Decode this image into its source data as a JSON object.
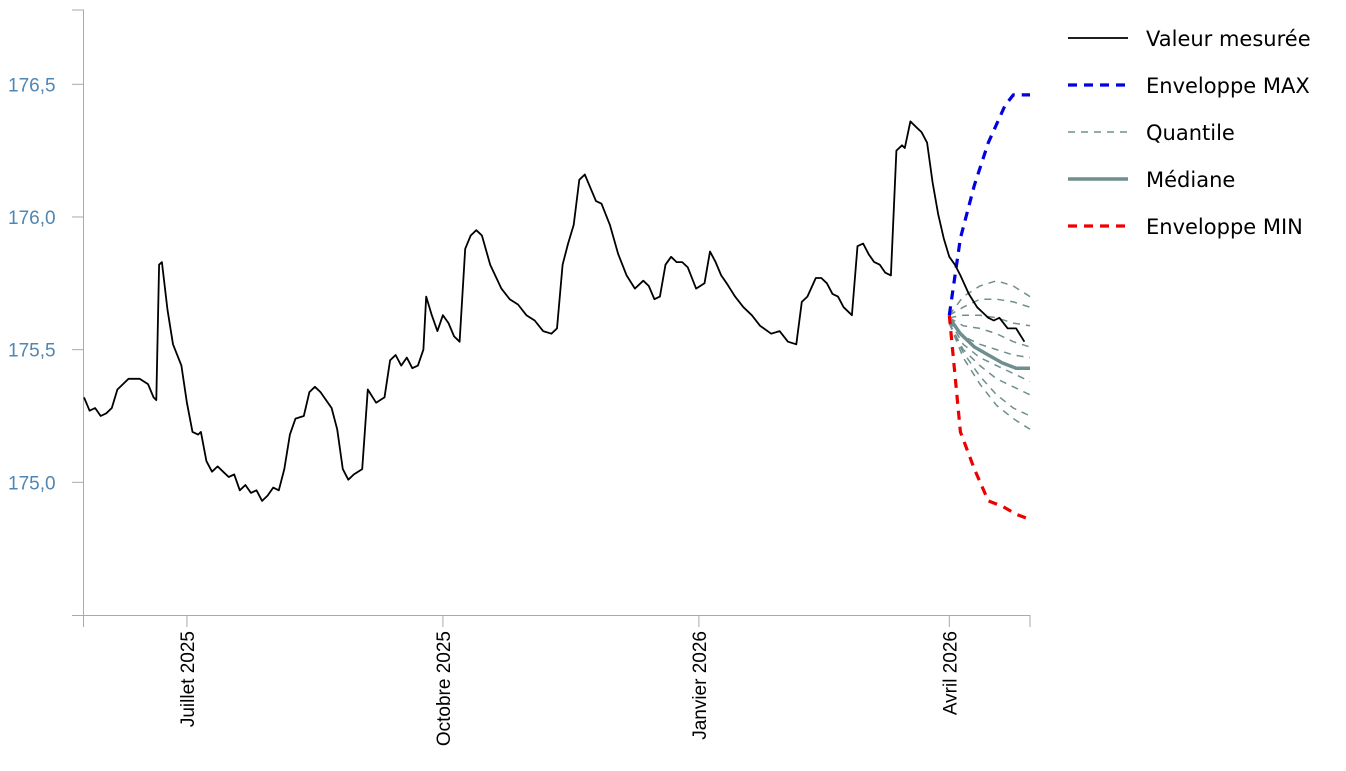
{
  "chart_data": {
    "type": "line",
    "x_axis": {
      "type": "date",
      "range": [
        "2025-05-25",
        "2026-04-30"
      ],
      "ticks": [
        {
          "date": "2025-07-01",
          "label": "Juillet 2025"
        },
        {
          "date": "2025-10-01",
          "label": "Octobre 2025"
        },
        {
          "date": "2026-01-01",
          "label": "Janvier 2026"
        },
        {
          "date": "2026-04-01",
          "label": "Avril 2026"
        }
      ]
    },
    "y_axis": {
      "range": [
        174.5,
        176.78
      ],
      "ticks": [
        {
          "value": 175.0,
          "label": "175,0"
        },
        {
          "value": 175.5,
          "label": "175,5"
        },
        {
          "value": 176.0,
          "label": "176,0"
        },
        {
          "value": 176.5,
          "label": "176,5"
        }
      ]
    },
    "grid": false,
    "legend": {
      "placement": "right-top",
      "entries": [
        {
          "key": "mesure",
          "label": "Valeur mesurée",
          "color": "#000000",
          "style": "solid"
        },
        {
          "key": "max",
          "label": "Enveloppe MAX",
          "color": "#0000e0",
          "style": "dashed"
        },
        {
          "key": "quantile",
          "label": "Quantile",
          "color": "#6f8f8f",
          "style": "dashed-thin"
        },
        {
          "key": "mediane",
          "label": "Médiane",
          "color": "#6f8f8f",
          "style": "solid-thick"
        },
        {
          "key": "min",
          "label": "Enveloppe MIN",
          "color": "#ee0000",
          "style": "dashed"
        }
      ]
    },
    "series": [
      {
        "key": "mesure",
        "name": "Valeur mesurée",
        "color": "#000000",
        "points": [
          [
            "2025-05-25",
            175.32
          ],
          [
            "2025-05-27",
            175.27
          ],
          [
            "2025-05-29",
            175.28
          ],
          [
            "2025-05-31",
            175.25
          ],
          [
            "2025-06-02",
            175.26
          ],
          [
            "2025-06-04",
            175.28
          ],
          [
            "2025-06-06",
            175.35
          ],
          [
            "2025-06-08",
            175.37
          ],
          [
            "2025-06-10",
            175.39
          ],
          [
            "2025-06-14",
            175.39
          ],
          [
            "2025-06-17",
            175.37
          ],
          [
            "2025-06-19",
            175.32
          ],
          [
            "2025-06-20",
            175.31
          ],
          [
            "2025-06-21",
            175.82
          ],
          [
            "2025-06-22",
            175.83
          ],
          [
            "2025-06-24",
            175.65
          ],
          [
            "2025-06-26",
            175.52
          ],
          [
            "2025-06-29",
            175.44
          ],
          [
            "2025-07-01",
            175.3
          ],
          [
            "2025-07-03",
            175.19
          ],
          [
            "2025-07-05",
            175.18
          ],
          [
            "2025-07-06",
            175.19
          ],
          [
            "2025-07-08",
            175.08
          ],
          [
            "2025-07-10",
            175.04
          ],
          [
            "2025-07-12",
            175.06
          ],
          [
            "2025-07-14",
            175.04
          ],
          [
            "2025-07-16",
            175.02
          ],
          [
            "2025-07-18",
            175.03
          ],
          [
            "2025-07-20",
            174.97
          ],
          [
            "2025-07-22",
            174.99
          ],
          [
            "2025-07-24",
            174.96
          ],
          [
            "2025-07-26",
            174.97
          ],
          [
            "2025-07-28",
            174.93
          ],
          [
            "2025-07-30",
            174.95
          ],
          [
            "2025-08-01",
            174.98
          ],
          [
            "2025-08-03",
            174.97
          ],
          [
            "2025-08-05",
            175.05
          ],
          [
            "2025-08-07",
            175.18
          ],
          [
            "2025-08-09",
            175.24
          ],
          [
            "2025-08-12",
            175.25
          ],
          [
            "2025-08-14",
            175.34
          ],
          [
            "2025-08-16",
            175.36
          ],
          [
            "2025-08-18",
            175.34
          ],
          [
            "2025-08-20",
            175.31
          ],
          [
            "2025-08-22",
            175.28
          ],
          [
            "2025-08-24",
            175.2
          ],
          [
            "2025-08-26",
            175.05
          ],
          [
            "2025-08-28",
            175.01
          ],
          [
            "2025-08-30",
            175.03
          ],
          [
            "2025-09-02",
            175.05
          ],
          [
            "2025-09-04",
            175.35
          ],
          [
            "2025-09-07",
            175.3
          ],
          [
            "2025-09-10",
            175.32
          ],
          [
            "2025-09-12",
            175.46
          ],
          [
            "2025-09-14",
            175.48
          ],
          [
            "2025-09-16",
            175.44
          ],
          [
            "2025-09-18",
            175.47
          ],
          [
            "2025-09-20",
            175.43
          ],
          [
            "2025-09-22",
            175.44
          ],
          [
            "2025-09-24",
            175.5
          ],
          [
            "2025-09-25",
            175.7
          ],
          [
            "2025-09-27",
            175.63
          ],
          [
            "2025-09-29",
            175.57
          ],
          [
            "2025-10-01",
            175.63
          ],
          [
            "2025-10-03",
            175.6
          ],
          [
            "2025-10-05",
            175.55
          ],
          [
            "2025-10-07",
            175.53
          ],
          [
            "2025-10-09",
            175.88
          ],
          [
            "2025-10-11",
            175.93
          ],
          [
            "2025-10-13",
            175.95
          ],
          [
            "2025-10-15",
            175.93
          ],
          [
            "2025-10-18",
            175.82
          ],
          [
            "2025-10-22",
            175.73
          ],
          [
            "2025-10-25",
            175.69
          ],
          [
            "2025-10-28",
            175.67
          ],
          [
            "2025-10-31",
            175.63
          ],
          [
            "2025-11-03",
            175.61
          ],
          [
            "2025-11-06",
            175.57
          ],
          [
            "2025-11-09",
            175.56
          ],
          [
            "2025-11-11",
            175.58
          ],
          [
            "2025-11-13",
            175.82
          ],
          [
            "2025-11-15",
            175.9
          ],
          [
            "2025-11-17",
            175.97
          ],
          [
            "2025-11-19",
            176.14
          ],
          [
            "2025-11-21",
            176.16
          ],
          [
            "2025-11-23",
            176.11
          ],
          [
            "2025-11-25",
            176.06
          ],
          [
            "2025-11-27",
            176.05
          ],
          [
            "2025-11-30",
            175.97
          ],
          [
            "2025-12-03",
            175.86
          ],
          [
            "2025-12-06",
            175.78
          ],
          [
            "2025-12-09",
            175.73
          ],
          [
            "2025-12-12",
            175.76
          ],
          [
            "2025-12-14",
            175.74
          ],
          [
            "2025-12-16",
            175.69
          ],
          [
            "2025-12-18",
            175.7
          ],
          [
            "2025-12-20",
            175.82
          ],
          [
            "2025-12-22",
            175.85
          ],
          [
            "2025-12-24",
            175.83
          ],
          [
            "2025-12-26",
            175.83
          ],
          [
            "2025-12-28",
            175.81
          ],
          [
            "2025-12-31",
            175.73
          ],
          [
            "2026-01-03",
            175.75
          ],
          [
            "2026-01-05",
            175.87
          ],
          [
            "2026-01-07",
            175.83
          ],
          [
            "2026-01-09",
            175.78
          ],
          [
            "2026-01-11",
            175.75
          ],
          [
            "2026-01-14",
            175.7
          ],
          [
            "2026-01-17",
            175.66
          ],
          [
            "2026-01-20",
            175.63
          ],
          [
            "2026-01-23",
            175.59
          ],
          [
            "2026-01-27",
            175.56
          ],
          [
            "2026-01-30",
            175.57
          ],
          [
            "2026-02-02",
            175.53
          ],
          [
            "2026-02-05",
            175.52
          ],
          [
            "2026-02-07",
            175.68
          ],
          [
            "2026-02-09",
            175.7
          ],
          [
            "2026-02-12",
            175.77
          ],
          [
            "2026-02-14",
            175.77
          ],
          [
            "2026-02-16",
            175.75
          ],
          [
            "2026-02-18",
            175.71
          ],
          [
            "2026-02-20",
            175.7
          ],
          [
            "2026-02-22",
            175.66
          ],
          [
            "2026-02-25",
            175.63
          ],
          [
            "2026-02-27",
            175.89
          ],
          [
            "2026-03-01",
            175.9
          ],
          [
            "2026-03-03",
            175.86
          ],
          [
            "2026-03-05",
            175.83
          ],
          [
            "2026-03-07",
            175.82
          ],
          [
            "2026-03-09",
            175.79
          ],
          [
            "2026-03-11",
            175.78
          ],
          [
            "2026-03-13",
            176.25
          ],
          [
            "2026-03-15",
            176.27
          ],
          [
            "2026-03-16",
            176.26
          ],
          [
            "2026-03-18",
            176.36
          ],
          [
            "2026-03-20",
            176.34
          ],
          [
            "2026-03-22",
            176.32
          ],
          [
            "2026-03-24",
            176.28
          ],
          [
            "2026-03-26",
            176.13
          ],
          [
            "2026-03-28",
            176.01
          ],
          [
            "2026-03-30",
            175.92
          ],
          [
            "2026-04-01",
            175.85
          ],
          [
            "2026-04-03",
            175.82
          ],
          [
            "2026-04-05",
            175.78
          ],
          [
            "2026-04-08",
            175.71
          ],
          [
            "2026-04-11",
            175.66
          ],
          [
            "2026-04-13",
            175.64
          ],
          [
            "2026-04-15",
            175.62
          ],
          [
            "2026-04-17",
            175.61
          ],
          [
            "2026-04-19",
            175.62
          ],
          [
            "2026-04-22",
            175.58
          ],
          [
            "2026-04-25",
            175.58
          ],
          [
            "2026-04-28",
            175.53
          ]
        ]
      },
      {
        "key": "max",
        "name": "Enveloppe MAX",
        "color": "#0000e0",
        "points": [
          [
            "2026-04-01",
            175.63
          ],
          [
            "2026-04-05",
            175.92
          ],
          [
            "2026-04-10",
            176.12
          ],
          [
            "2026-04-15",
            176.28
          ],
          [
            "2026-04-21",
            176.42
          ],
          [
            "2026-04-24",
            176.46
          ],
          [
            "2026-04-30",
            176.46
          ]
        ]
      },
      {
        "key": "min",
        "name": "Enveloppe MIN",
        "color": "#ee0000",
        "points": [
          [
            "2026-04-01",
            175.63
          ],
          [
            "2026-04-05",
            175.19
          ],
          [
            "2026-04-10",
            175.05
          ],
          [
            "2026-04-15",
            174.93
          ],
          [
            "2026-04-20",
            174.91
          ],
          [
            "2026-04-25",
            174.88
          ],
          [
            "2026-04-30",
            174.86
          ]
        ]
      },
      {
        "key": "mediane",
        "name": "Médiane",
        "color": "#6f8f8f",
        "points": [
          [
            "2026-04-01",
            175.62
          ],
          [
            "2026-04-05",
            175.56
          ],
          [
            "2026-04-10",
            175.51
          ],
          [
            "2026-04-15",
            175.48
          ],
          [
            "2026-04-20",
            175.45
          ],
          [
            "2026-04-25",
            175.43
          ],
          [
            "2026-04-30",
            175.43
          ]
        ]
      },
      {
        "key": "quantile",
        "name": "Quantile",
        "color": "#6f8f8f",
        "lines": [
          [
            [
              "2026-04-01",
              175.63
            ],
            [
              "2026-04-06",
              175.7
            ],
            [
              "2026-04-12",
              175.74
            ],
            [
              "2026-04-18",
              175.76
            ],
            [
              "2026-04-24",
              175.74
            ],
            [
              "2026-04-30",
              175.7
            ]
          ],
          [
            [
              "2026-04-01",
              175.63
            ],
            [
              "2026-04-06",
              175.66
            ],
            [
              "2026-04-12",
              175.69
            ],
            [
              "2026-04-18",
              175.69
            ],
            [
              "2026-04-24",
              175.68
            ],
            [
              "2026-04-30",
              175.66
            ]
          ],
          [
            [
              "2026-04-01",
              175.62
            ],
            [
              "2026-04-06",
              175.63
            ],
            [
              "2026-04-12",
              175.63
            ],
            [
              "2026-04-18",
              175.62
            ],
            [
              "2026-04-24",
              175.6
            ],
            [
              "2026-04-30",
              175.59
            ]
          ],
          [
            [
              "2026-04-01",
              175.62
            ],
            [
              "2026-04-06",
              175.59
            ],
            [
              "2026-04-12",
              175.58
            ],
            [
              "2026-04-18",
              175.56
            ],
            [
              "2026-04-24",
              175.53
            ],
            [
              "2026-04-30",
              175.51
            ]
          ],
          [
            [
              "2026-04-01",
              175.61
            ],
            [
              "2026-04-06",
              175.55
            ],
            [
              "2026-04-12",
              175.52
            ],
            [
              "2026-04-18",
              175.5
            ],
            [
              "2026-04-24",
              175.48
            ],
            [
              "2026-04-30",
              175.47
            ]
          ],
          [
            [
              "2026-04-01",
              175.61
            ],
            [
              "2026-04-06",
              175.52
            ],
            [
              "2026-04-12",
              175.47
            ],
            [
              "2026-04-18",
              175.44
            ],
            [
              "2026-04-24",
              175.41
            ],
            [
              "2026-04-30",
              175.38
            ]
          ],
          [
            [
              "2026-04-01",
              175.6
            ],
            [
              "2026-04-06",
              175.5
            ],
            [
              "2026-04-12",
              175.44
            ],
            [
              "2026-04-18",
              175.39
            ],
            [
              "2026-04-24",
              175.36
            ],
            [
              "2026-04-30",
              175.33
            ]
          ],
          [
            [
              "2026-04-01",
              175.6
            ],
            [
              "2026-04-06",
              175.49
            ],
            [
              "2026-04-12",
              175.4
            ],
            [
              "2026-04-18",
              175.33
            ],
            [
              "2026-04-24",
              175.28
            ],
            [
              "2026-04-30",
              175.25
            ]
          ],
          [
            [
              "2026-04-01",
              175.6
            ],
            [
              "2026-04-06",
              175.47
            ],
            [
              "2026-04-12",
              175.37
            ],
            [
              "2026-04-18",
              175.29
            ],
            [
              "2026-04-24",
              175.24
            ],
            [
              "2026-04-30",
              175.2
            ]
          ]
        ]
      }
    ]
  }
}
